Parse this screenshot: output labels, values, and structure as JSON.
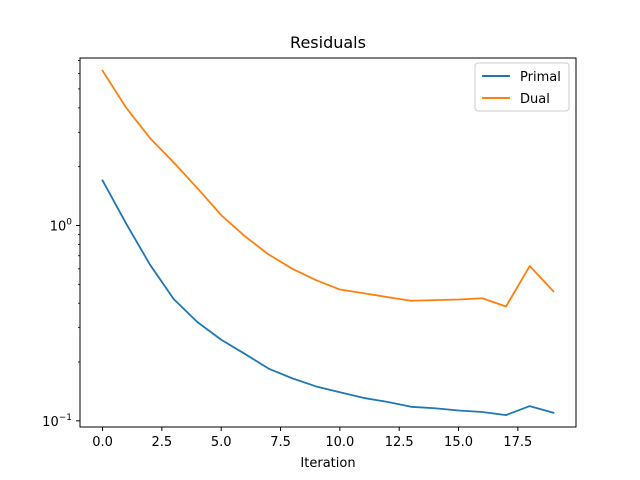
{
  "chart_data": {
    "type": "line",
    "title": "Residuals",
    "xlabel": "Iteration",
    "ylabel": "",
    "yscale": "log",
    "xlim": [
      -0.95,
      19.95
    ],
    "ylim": [
      0.093,
      7.2
    ],
    "x_ticks": [
      0,
      2.5,
      5,
      7.5,
      10,
      12.5,
      15,
      17.5
    ],
    "x_tick_labels": [
      "0.0",
      "2.5",
      "5.0",
      "7.5",
      "10.0",
      "12.5",
      "15.0",
      "17.5"
    ],
    "y_ticks": [
      {
        "value": 1,
        "base": "10",
        "exp": "0"
      },
      {
        "value": 0.1,
        "base": "10",
        "exp": "−1"
      }
    ],
    "grid": false,
    "legend_position": "top-right",
    "x": [
      0,
      1,
      2,
      3,
      4,
      5,
      6,
      7,
      8,
      9,
      10,
      11,
      12,
      13,
      14,
      15,
      16,
      17,
      18,
      19
    ],
    "series": [
      {
        "name": "Primal",
        "color": "#1f77b4",
        "values": [
          1.7,
          1.02,
          0.63,
          0.42,
          0.32,
          0.26,
          0.22,
          0.185,
          0.165,
          0.15,
          0.14,
          0.131,
          0.125,
          0.118,
          0.116,
          0.113,
          0.111,
          0.107,
          0.119,
          0.11
        ]
      },
      {
        "name": "Dual",
        "color": "#ff7f0e",
        "values": [
          6.2,
          4.0,
          2.8,
          2.1,
          1.55,
          1.13,
          0.88,
          0.71,
          0.6,
          0.525,
          0.47,
          0.45,
          0.43,
          0.412,
          0.415,
          0.418,
          0.424,
          0.385,
          0.62,
          0.46
        ]
      }
    ]
  }
}
